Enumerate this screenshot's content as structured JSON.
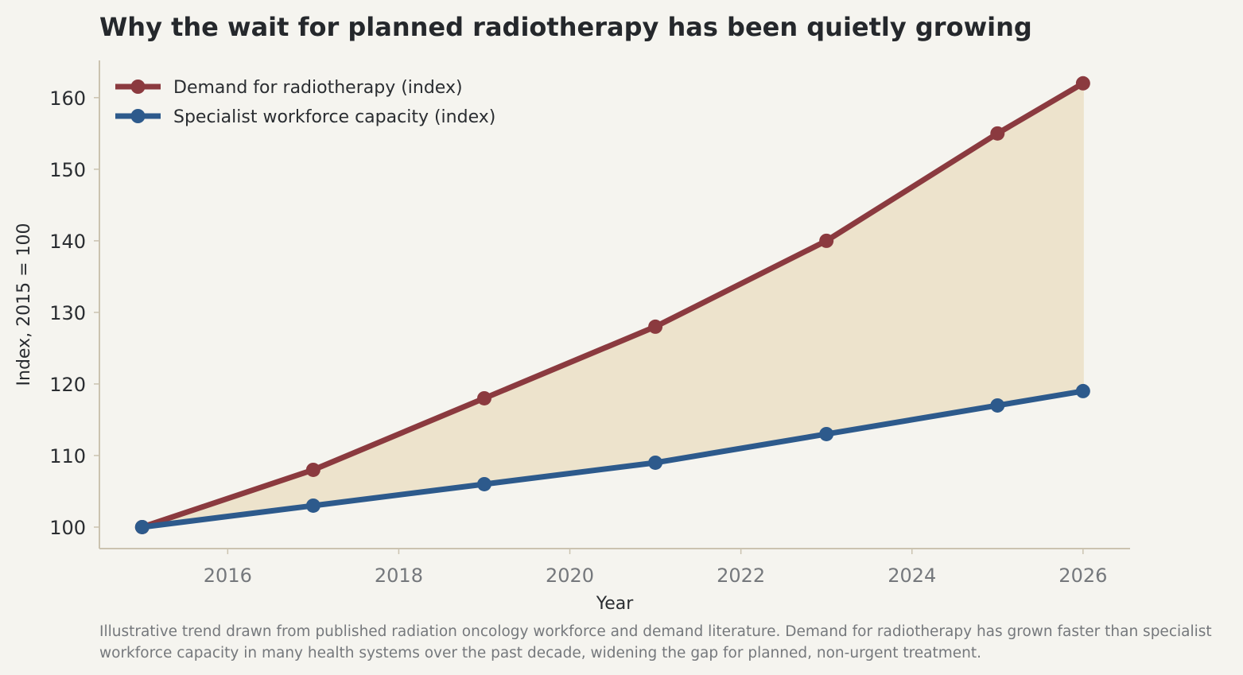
{
  "chart_data": {
    "type": "line",
    "title": "Why the wait for planned radiotherapy has been quietly growing",
    "xlabel": "Year",
    "ylabel": "Index, 2015 = 100",
    "x": [
      2015,
      2017,
      2019,
      2021,
      2023,
      2025,
      2026
    ],
    "xlim": [
      2014.5,
      2026.55
    ],
    "ylim": [
      97,
      165.2
    ],
    "xticks": [
      2016,
      2018,
      2020,
      2022,
      2024,
      2026
    ],
    "yticks": [
      100,
      110,
      120,
      130,
      140,
      150,
      160
    ],
    "series": [
      {
        "name": "Demand for radiotherapy (index)",
        "values": [
          100,
          108,
          118,
          128,
          140,
          155,
          162
        ],
        "color": "#8b3a3f"
      },
      {
        "name": "Specialist workforce capacity (index)",
        "values": [
          100,
          103,
          106,
          109,
          113,
          117,
          119
        ],
        "color": "#2d5a8c"
      }
    ],
    "gap_fill_color": "#ede3cc",
    "grid": false,
    "legend_position": "top-left"
  },
  "caption": "Illustrative trend drawn from published radiation oncology workforce and demand literature. Demand for radiotherapy has grown faster than specialist workforce capacity in many health systems over the past decade, widening the gap for planned, non-urgent treatment."
}
